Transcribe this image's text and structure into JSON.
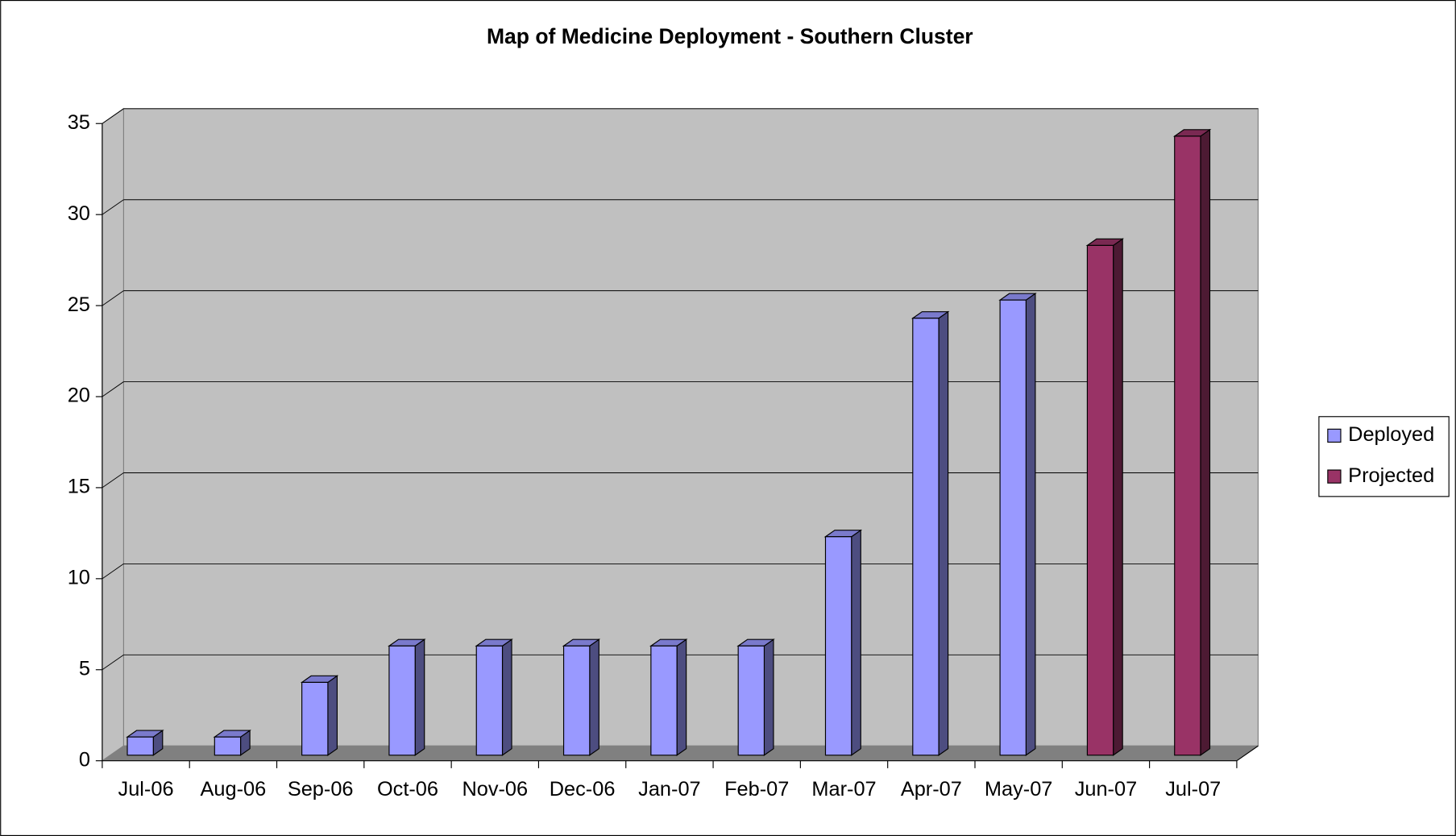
{
  "chart_data": {
    "type": "bar3d",
    "title": "Map of Medicine Deployment - Southern Cluster",
    "categories": [
      "Jul-06",
      "Aug-06",
      "Sep-06",
      "Oct-06",
      "Nov-06",
      "Dec-06",
      "Jan-07",
      "Feb-07",
      "Mar-07",
      "Apr-07",
      "May-07",
      "Jun-07",
      "Jul-07"
    ],
    "series": [
      {
        "name": "Deployed",
        "color": "#9999ff",
        "values": [
          1,
          1,
          4,
          6,
          6,
          6,
          6,
          6,
          12,
          24,
          25,
          null,
          null
        ]
      },
      {
        "name": "Projected",
        "color": "#993366",
        "values": [
          null,
          null,
          null,
          null,
          null,
          null,
          null,
          null,
          null,
          null,
          null,
          28,
          34
        ]
      }
    ],
    "ylim": [
      0,
      35
    ],
    "yticks": [
      0,
      5,
      10,
      15,
      20,
      25,
      30,
      35
    ],
    "grid": true,
    "legend": "right"
  }
}
